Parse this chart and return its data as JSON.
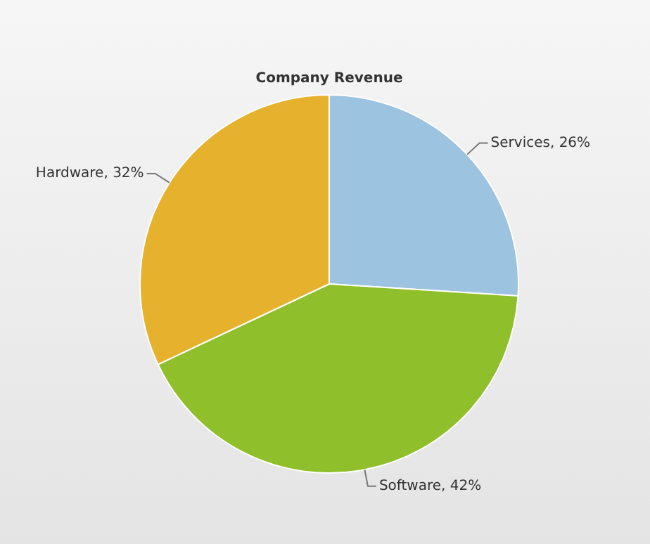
{
  "chart_data": {
    "type": "pie",
    "title": "Company Revenue",
    "categories": [
      "Services",
      "Software",
      "Hardware"
    ],
    "values": [
      26,
      42,
      32
    ],
    "value_labels": [
      "26%",
      "42%",
      "32%"
    ],
    "colors": [
      "#9cc3df",
      "#8fbf2a",
      "#e6b22e"
    ],
    "legend": false
  }
}
